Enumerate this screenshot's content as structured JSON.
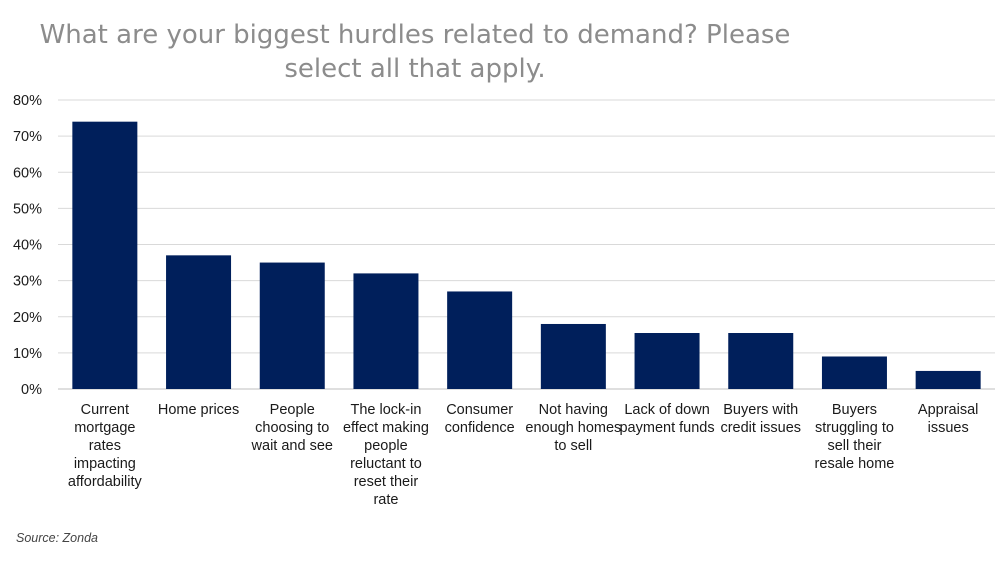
{
  "chart_data": {
    "type": "bar",
    "title": "What are your biggest hurdles related to demand? Please select all that apply.",
    "categories": [
      "Current mortgage rates impacting affordability",
      "Home prices",
      "People choosing to wait and see",
      "The lock-in effect making people reluctant to reset their rate",
      "Consumer confidence",
      "Not having enough homes to sell",
      "Lack of down payment funds",
      "Buyers with credit issues",
      "Buyers struggling to sell their resale home",
      "Appraisal issues"
    ],
    "values": [
      74,
      37,
      35,
      32,
      27,
      18,
      15.5,
      15.5,
      9,
      5
    ],
    "ylim": [
      0,
      80
    ],
    "yticks": [
      "0%",
      "10%",
      "20%",
      "30%",
      "40%",
      "50%",
      "60%",
      "70%",
      "80%"
    ],
    "grid": true,
    "bar_color": "#001f5b",
    "source": "Source: Zonda"
  }
}
